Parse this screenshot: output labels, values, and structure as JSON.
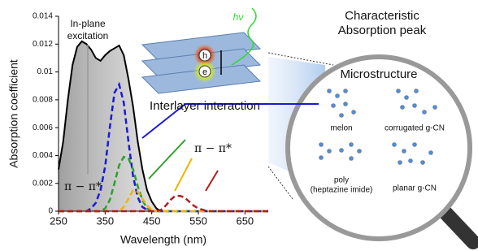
{
  "chart_data": {
    "type": "line",
    "x": [
      250,
      260,
      270,
      280,
      290,
      300,
      310,
      320,
      330,
      340,
      350,
      360,
      370,
      380,
      390,
      400,
      410,
      420,
      430,
      440,
      450,
      460,
      470,
      480,
      490,
      500,
      510,
      520,
      530,
      540,
      550,
      560,
      570,
      580,
      590,
      600,
      610,
      620,
      630,
      640,
      650,
      660,
      670,
      680,
      690,
      700
    ],
    "series": [
      {
        "color": "#000000",
        "dash": false,
        "values": [
          0.003,
          0.005,
          0.008,
          0.0105,
          0.0118,
          0.0122,
          0.012,
          0.0116,
          0.011,
          0.0108,
          0.0112,
          0.0115,
          0.0117,
          0.0119,
          0.0112,
          0.0095,
          0.0075,
          0.005,
          0.003,
          0.0015,
          0.0007,
          0.0002,
          0,
          0,
          0,
          0,
          0,
          0,
          0,
          0,
          0,
          0,
          0,
          0,
          0,
          0,
          0,
          0,
          0,
          0,
          0,
          0,
          0,
          0,
          0,
          0
        ]
      },
      {
        "color": "#1a1ad6",
        "dash": true,
        "values": [
          0,
          0,
          0,
          0,
          0,
          0,
          0,
          0.0002,
          0.0006,
          0.0015,
          0.0032,
          0.006,
          0.0085,
          0.0091,
          0.0078,
          0.005,
          0.0025,
          0.001,
          0.0003,
          0.0001,
          0,
          0,
          0,
          0,
          0,
          0,
          0,
          0,
          0,
          0,
          0,
          0,
          0,
          0,
          0,
          0,
          0,
          0,
          0,
          0,
          0,
          0,
          0,
          0,
          0,
          0
        ]
      },
      {
        "color": "#2ca02c",
        "dash": true,
        "values": [
          0,
          0,
          0,
          0,
          0,
          0,
          0,
          0,
          0,
          0,
          0.0002,
          0.0008,
          0.002,
          0.0033,
          0.0039,
          0.0038,
          0.003,
          0.0018,
          0.0008,
          0.0002,
          0,
          0,
          0,
          0,
          0,
          0,
          0,
          0,
          0,
          0,
          0,
          0,
          0,
          0,
          0,
          0,
          0,
          0,
          0,
          0,
          0,
          0,
          0,
          0,
          0,
          0
        ]
      },
      {
        "color": "#f2b400",
        "dash": true,
        "values": [
          0,
          0,
          0,
          0,
          0,
          0,
          0,
          0,
          0,
          0,
          0,
          0,
          0,
          0,
          0.0003,
          0.0009,
          0.0015,
          0.0014,
          0.0009,
          0.0004,
          0.0001,
          0,
          0,
          0,
          0,
          0,
          0,
          0,
          0,
          0,
          0,
          0,
          0,
          0,
          0,
          0,
          0,
          0,
          0,
          0,
          0,
          0,
          0,
          0,
          0,
          0
        ]
      },
      {
        "color": "#b01e1e",
        "dash": true,
        "values": [
          0,
          0,
          0,
          0,
          0,
          0,
          0,
          0,
          0,
          0,
          0,
          0,
          0,
          0,
          0,
          0,
          0,
          0,
          0,
          0,
          0,
          0,
          0.0001,
          0.0004,
          0.0008,
          0.0011,
          0.0011,
          0.001,
          0.0007,
          0.0004,
          0.0002,
          0.0001,
          0,
          0,
          0,
          0,
          0,
          0,
          0,
          0,
          0,
          0,
          0,
          0,
          0,
          0
        ]
      }
    ],
    "xlim": [
      250,
      700
    ],
    "xticks": [
      250,
      350,
      450,
      550,
      650
    ],
    "ylim": [
      0,
      0.014
    ],
    "yticks": [
      0,
      0.002,
      0.004,
      0.006,
      0.008,
      0.01,
      0.012,
      0.014
    ],
    "xlabel": "Wavelength (nm)",
    "ylabel": "Absorption coefficient",
    "annotations": {
      "in_plane": [
        "In-plane",
        "excitation"
      ],
      "pi_left": "π − π*",
      "pi_right": "π − π*",
      "interlayer": "Interlayer interaction",
      "hv": "hν",
      "h": "h",
      "e": "e"
    }
  },
  "figure": {
    "peak_title": [
      "Characteristic",
      "Absorption peak"
    ],
    "microstructure": "Microstructure",
    "structures": [
      [
        "melon"
      ],
      [
        "corrugated g-CN"
      ],
      [
        "poly",
        "(heptazine imide)"
      ],
      [
        "planar g-CN"
      ]
    ]
  }
}
